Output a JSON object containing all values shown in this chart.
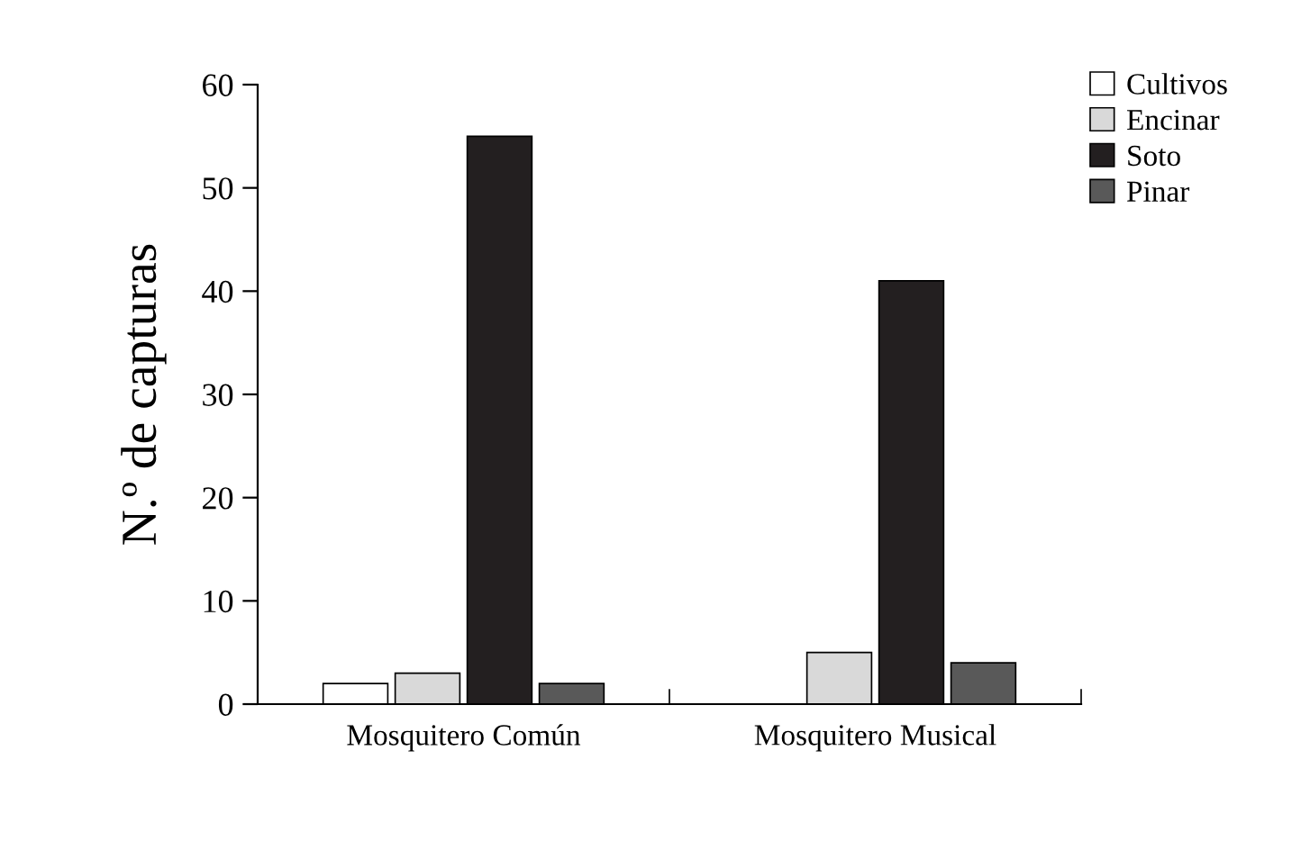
{
  "chart_data": {
    "type": "bar",
    "ylabel": "N.º de capturas",
    "categories": [
      "Mosquitero Común",
      "Mosquitero Musical"
    ],
    "series": [
      {
        "name": "Cultivos",
        "color": "#ffffff",
        "values": [
          2,
          0
        ]
      },
      {
        "name": "Encinar",
        "color": "#d9d9d9",
        "values": [
          3,
          5
        ]
      },
      {
        "name": "Soto",
        "color": "#231f20",
        "values": [
          55,
          41
        ]
      },
      {
        "name": "Pinar",
        "color": "#595959",
        "values": [
          2,
          4
        ]
      }
    ],
    "ylim": [
      0,
      60
    ],
    "yticks": [
      0,
      10,
      20,
      30,
      40,
      50,
      60
    ],
    "grid": false,
    "legend": "top right"
  }
}
